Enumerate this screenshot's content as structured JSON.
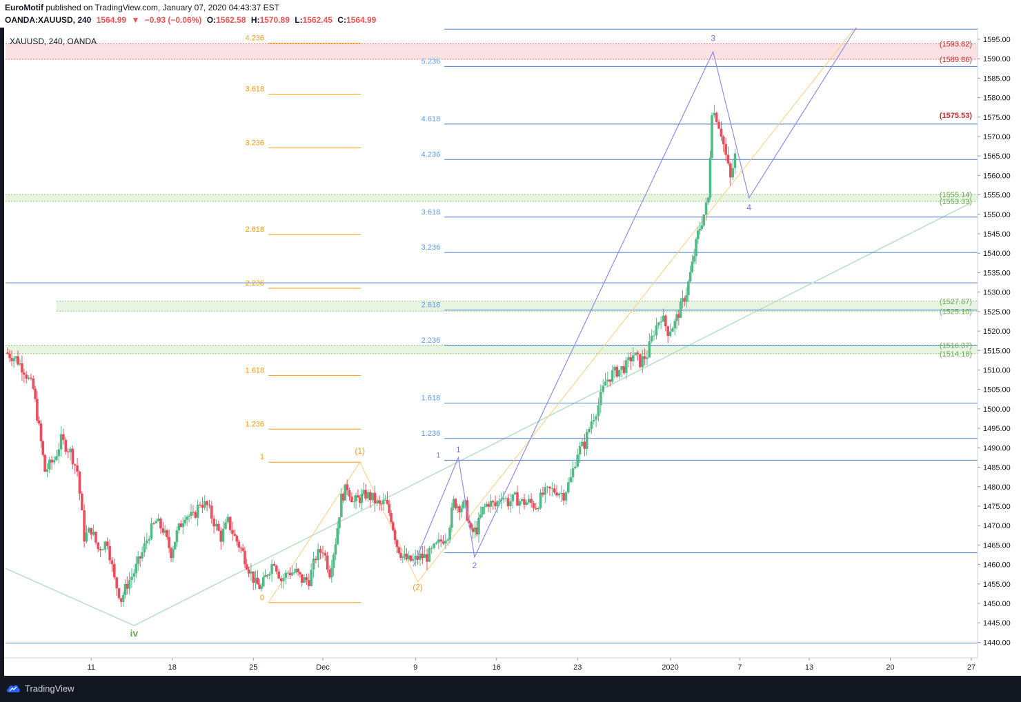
{
  "header": {
    "author": "EuroMotif",
    "published_text": "published on TradingView.com, January 07, 2020 04:43:37 EST",
    "symbol": "OANDA:XAUUSD, 240",
    "last": "1564.99",
    "change": "−0.93 (−0.06%)",
    "o_label": "O:",
    "o": "1562.58",
    "h_label": "H:",
    "h": "1570.89",
    "l_label": "L:",
    "l": "1562.45",
    "c_label": "C:",
    "c": "1564.99"
  },
  "legend": {
    "title": "XAUUSD, 240, OANDA"
  },
  "footer": {
    "brand": "TradingView"
  },
  "colors": {
    "up": "#53b987",
    "down": "#eb4d5c",
    "orange": "#ff9800",
    "blue": "#5b9cf6",
    "hline": "#4a7ec7",
    "purple": "#7b74d8",
    "green": "#6aa84f",
    "red": "#c62828"
  },
  "chart_data": {
    "type": "candlestick",
    "ylim": [
      1436,
      1598
    ],
    "y_ticks": [
      "1440.00",
      "1445.00",
      "1450.00",
      "1455.00",
      "1460.00",
      "1465.00",
      "1470.00",
      "1475.00",
      "1480.00",
      "1485.00",
      "1490.00",
      "1495.00",
      "1500.00",
      "1505.00",
      "1510.00",
      "1515.00",
      "1520.00",
      "1525.00",
      "1530.00",
      "1535.00",
      "1540.00",
      "1545.00",
      "1550.00",
      "1555.00",
      "1560.00",
      "1565.00",
      "1570.00",
      "1575.00",
      "1580.00",
      "1585.00",
      "1590.00",
      "1595.00"
    ],
    "x_ticks": [
      {
        "label": "11",
        "day": 11
      },
      {
        "label": "18",
        "day": 18
      },
      {
        "label": "25",
        "day": 25
      },
      {
        "label": "Dec",
        "day": 31
      },
      {
        "label": "9",
        "day": 39
      },
      {
        "label": "16",
        "day": 46
      },
      {
        "label": "23",
        "day": 53
      },
      {
        "label": "2020",
        "day": 61
      },
      {
        "label": "7",
        "day": 67
      },
      {
        "label": "13",
        "day": 73
      },
      {
        "label": "20",
        "day": 80
      },
      {
        "label": "27",
        "day": 87
      }
    ],
    "x_domain_days": [
      3.6,
      87
    ],
    "price_labels": [
      {
        "text": "(1593.82)",
        "price": 1593.82,
        "color": "red"
      },
      {
        "text": "(1589.86)",
        "price": 1589.86,
        "color": "red"
      },
      {
        "text": "(1575.53)",
        "price": 1575.53,
        "color": "red",
        "bold": true
      },
      {
        "text": "(1555.14)",
        "price": 1555.14,
        "color": "green"
      },
      {
        "text": "(1553.33)",
        "price": 1553.33,
        "color": "green"
      },
      {
        "text": "(1527.67)",
        "price": 1527.67,
        "color": "green"
      },
      {
        "text": "(1525.10)",
        "price": 1525.1,
        "color": "green"
      },
      {
        "text": "(1516.37)",
        "price": 1516.37,
        "color": "green"
      },
      {
        "text": "(1514.18)",
        "price": 1514.18,
        "color": "green"
      }
    ],
    "zones": [
      {
        "from": 1589.86,
        "to": 1593.82,
        "color": "red",
        "x_day_from": 3.6
      },
      {
        "from": 1553.33,
        "to": 1555.14,
        "color": "green",
        "x_day_from": 3.6
      },
      {
        "from": 1525.1,
        "to": 1527.67,
        "color": "green",
        "x_day_from": 8
      },
      {
        "from": 1514.18,
        "to": 1516.37,
        "color": "green",
        "x_day_from": 3.6
      }
    ],
    "fib_orange": {
      "day_from": 26.3,
      "day_to": 34.3,
      "levels": [
        {
          "label": "0",
          "price": 1450.2
        },
        {
          "label": "1",
          "price": 1486.3
        },
        {
          "label": "1.236",
          "price": 1494.8
        },
        {
          "label": "1.618",
          "price": 1508.6
        },
        {
          "label": "2.236",
          "price": 1531.0
        },
        {
          "label": "2.618",
          "price": 1544.8
        },
        {
          "label": "3.236",
          "price": 1567.1
        },
        {
          "label": "3.618",
          "price": 1580.9
        },
        {
          "label": "4.236",
          "price": 1594.0
        }
      ]
    },
    "fib_blue": {
      "day_from": 41.5,
      "day_to": 87,
      "levels": [
        {
          "label": "1",
          "price": 1486.8
        },
        {
          "label": "1.236",
          "price": 1492.4
        },
        {
          "label": "1.618",
          "price": 1501.5
        },
        {
          "label": "2.236",
          "price": 1516.3
        },
        {
          "label": "2.618",
          "price": 1525.4
        },
        {
          "label": "3.236",
          "price": 1540.2
        },
        {
          "label": "3.618",
          "price": 1549.3
        },
        {
          "label": "4.236",
          "price": 1564.1
        },
        {
          "label": "4.618",
          "price": 1573.2
        },
        {
          "label": "5.236",
          "price": 1588.0
        }
      ]
    },
    "full_hlines": [
      {
        "price": 1532.4,
        "day_from": 3.6
      },
      {
        "price": 1439.8,
        "day_from": 3.6
      },
      {
        "price": 1597.6,
        "day_from": 41.5
      },
      {
        "price": 1463.0,
        "day_from": 41.5
      }
    ],
    "wave_labels": [
      {
        "text": "iv",
        "day": 14.7,
        "price": 1441.5,
        "color": "green",
        "bold": true
      },
      {
        "text": "(1)",
        "day": 34.2,
        "price": 1488.5,
        "color": "orange"
      },
      {
        "text": "(2)",
        "day": 39.2,
        "price": 1453.5,
        "color": "orange"
      },
      {
        "text": "1",
        "day": 42.7,
        "price": 1488.8,
        "color": "purple"
      },
      {
        "text": "2",
        "day": 44.1,
        "price": 1459.0,
        "color": "purple"
      },
      {
        "text": "3",
        "day": 64.7,
        "price": 1594.5,
        "color": "purple"
      },
      {
        "text": "4",
        "day": 67.8,
        "price": 1551.0,
        "color": "purple"
      }
    ],
    "purple_path": [
      [
        38.8,
        1459.5
      ],
      [
        42.7,
        1487.5
      ],
      [
        44.1,
        1461.9
      ],
      [
        64.7,
        1591.8
      ],
      [
        67.8,
        1554.2
      ],
      [
        77.5,
        1600.0
      ]
    ],
    "orange_path": [
      [
        26.3,
        1450.2
      ],
      [
        34.2,
        1486.3
      ],
      [
        39.2,
        1455.5
      ],
      [
        77.5,
        1600.0
      ]
    ],
    "green_trend": [
      [
        3.6,
        1459.0
      ],
      [
        14.7,
        1444.3
      ],
      [
        87,
        1553.0
      ]
    ],
    "candles_source": "estimated path",
    "ohlc_path": [
      [
        3.6,
        1514.5
      ],
      [
        4.5,
        1513
      ],
      [
        5.2,
        1510
      ],
      [
        6.0,
        1505
      ],
      [
        6.5,
        1495
      ],
      [
        7.0,
        1484
      ],
      [
        7.8,
        1487
      ],
      [
        8.4,
        1492
      ],
      [
        9.2,
        1489
      ],
      [
        9.8,
        1484
      ],
      [
        10.4,
        1467
      ],
      [
        11.0,
        1469
      ],
      [
        11.6,
        1464
      ],
      [
        12.4,
        1466
      ],
      [
        13.0,
        1456
      ],
      [
        13.6,
        1451
      ],
      [
        14.1,
        1455
      ],
      [
        14.7,
        1458
      ],
      [
        15.4,
        1463
      ],
      [
        16.0,
        1468
      ],
      [
        16.6,
        1471
      ],
      [
        17.2,
        1469
      ],
      [
        17.9,
        1463
      ],
      [
        18.4,
        1468
      ],
      [
        19.1,
        1473
      ],
      [
        19.8,
        1472
      ],
      [
        20.4,
        1476
      ],
      [
        21.0,
        1475
      ],
      [
        21.6,
        1471
      ],
      [
        22.2,
        1467
      ],
      [
        22.8,
        1471
      ],
      [
        23.4,
        1467
      ],
      [
        24.1,
        1463
      ],
      [
        24.6,
        1459
      ],
      [
        25.2,
        1455
      ],
      [
        25.7,
        1454
      ],
      [
        26.2,
        1458
      ],
      [
        26.8,
        1461
      ],
      [
        27.4,
        1456
      ],
      [
        28.0,
        1458
      ],
      [
        28.7,
        1458
      ],
      [
        29.2,
        1456
      ],
      [
        29.8,
        1456
      ],
      [
        30.4,
        1462
      ],
      [
        31.0,
        1464
      ],
      [
        31.6,
        1458
      ],
      [
        32.1,
        1466
      ],
      [
        32.6,
        1477
      ],
      [
        33.1,
        1480
      ],
      [
        33.7,
        1476
      ],
      [
        34.2,
        1477
      ],
      [
        34.7,
        1478
      ],
      [
        35.3,
        1477
      ],
      [
        35.9,
        1475
      ],
      [
        36.4,
        1476
      ],
      [
        36.9,
        1472
      ],
      [
        37.4,
        1465
      ],
      [
        37.9,
        1462
      ],
      [
        38.4,
        1461
      ],
      [
        38.8,
        1461
      ],
      [
        39.4,
        1462
      ],
      [
        40.0,
        1462
      ],
      [
        40.6,
        1464
      ],
      [
        41.2,
        1466
      ],
      [
        41.8,
        1468
      ],
      [
        42.3,
        1476
      ],
      [
        42.8,
        1475
      ],
      [
        43.3,
        1475
      ],
      [
        43.8,
        1468
      ],
      [
        44.3,
        1469
      ],
      [
        44.8,
        1474
      ],
      [
        45.3,
        1476
      ],
      [
        45.9,
        1475
      ],
      [
        46.4,
        1478
      ],
      [
        47.0,
        1476
      ],
      [
        47.6,
        1477
      ],
      [
        48.2,
        1476
      ],
      [
        48.8,
        1476
      ],
      [
        49.4,
        1475
      ],
      [
        50.0,
        1478
      ],
      [
        50.6,
        1479
      ],
      [
        51.2,
        1479
      ],
      [
        51.8,
        1478
      ],
      [
        52.4,
        1482
      ],
      [
        53.0,
        1489
      ],
      [
        53.6,
        1491
      ],
      [
        54.2,
        1497
      ],
      [
        54.8,
        1501
      ],
      [
        55.4,
        1507
      ],
      [
        56.0,
        1509
      ],
      [
        56.6,
        1510
      ],
      [
        57.2,
        1511
      ],
      [
        57.8,
        1514
      ],
      [
        58.4,
        1512
      ],
      [
        59.0,
        1514
      ],
      [
        59.6,
        1520
      ],
      [
        60.2,
        1524
      ],
      [
        60.8,
        1520
      ],
      [
        61.4,
        1522
      ],
      [
        61.9,
        1526
      ],
      [
        62.4,
        1530
      ],
      [
        62.9,
        1537
      ],
      [
        63.4,
        1545
      ],
      [
        63.9,
        1550
      ],
      [
        64.3,
        1554
      ],
      [
        64.6,
        1577
      ],
      [
        65.0,
        1575
      ],
      [
        65.4,
        1571
      ],
      [
        65.8,
        1565
      ],
      [
        66.2,
        1559
      ],
      [
        66.6,
        1565
      ]
    ]
  }
}
